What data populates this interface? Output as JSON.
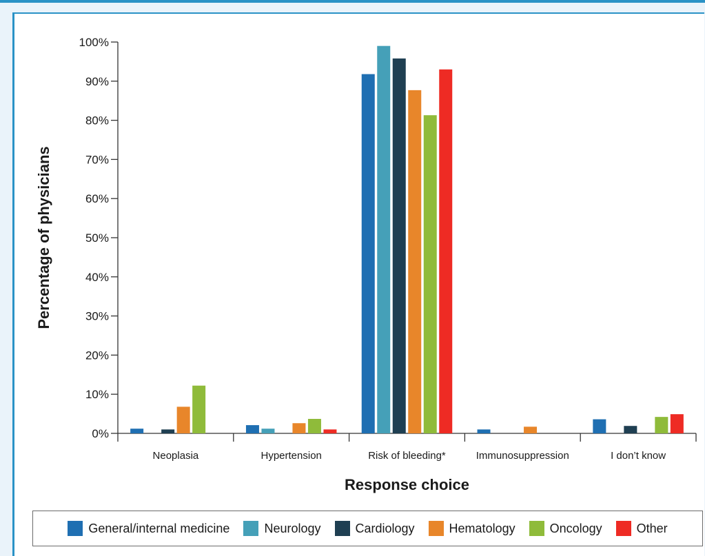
{
  "colors": {
    "General/internal medicine": "#1f6fb2",
    "Neurology": "#45a0b8",
    "Cardiology": "#1f3f52",
    "Hematology": "#e8862a",
    "Oncology": "#8fbb3a",
    "Other": "#ee2b24"
  },
  "chart_data": {
    "type": "bar",
    "title": "",
    "xlabel": "Response choice",
    "ylabel": "Percentage of physicians",
    "ylim": [
      0,
      100
    ],
    "yticks": [
      "0%",
      "10%",
      "20%",
      "30%",
      "40%",
      "50%",
      "60%",
      "70%",
      "80%",
      "90%",
      "100%"
    ],
    "categories": [
      "Neoplasia",
      "Hypertension",
      "Risk of bleeding*",
      "Immunosuppression",
      "I don’t know"
    ],
    "series": [
      {
        "name": "General/internal medicine",
        "values": [
          1.2,
          2.1,
          91.8,
          1.0,
          3.6
        ]
      },
      {
        "name": "Neurology",
        "values": [
          0,
          1.2,
          99.0,
          0,
          0
        ]
      },
      {
        "name": "Cardiology",
        "values": [
          1.0,
          0,
          95.8,
          0,
          1.9
        ]
      },
      {
        "name": "Hematology",
        "values": [
          6.8,
          2.6,
          87.7,
          1.7,
          0
        ]
      },
      {
        "name": "Oncology",
        "values": [
          12.2,
          3.7,
          81.3,
          0,
          4.2
        ]
      },
      {
        "name": "Other",
        "values": [
          0,
          1.0,
          93.0,
          0,
          4.9
        ]
      }
    ],
    "grid": false,
    "legend_position": "bottom"
  }
}
